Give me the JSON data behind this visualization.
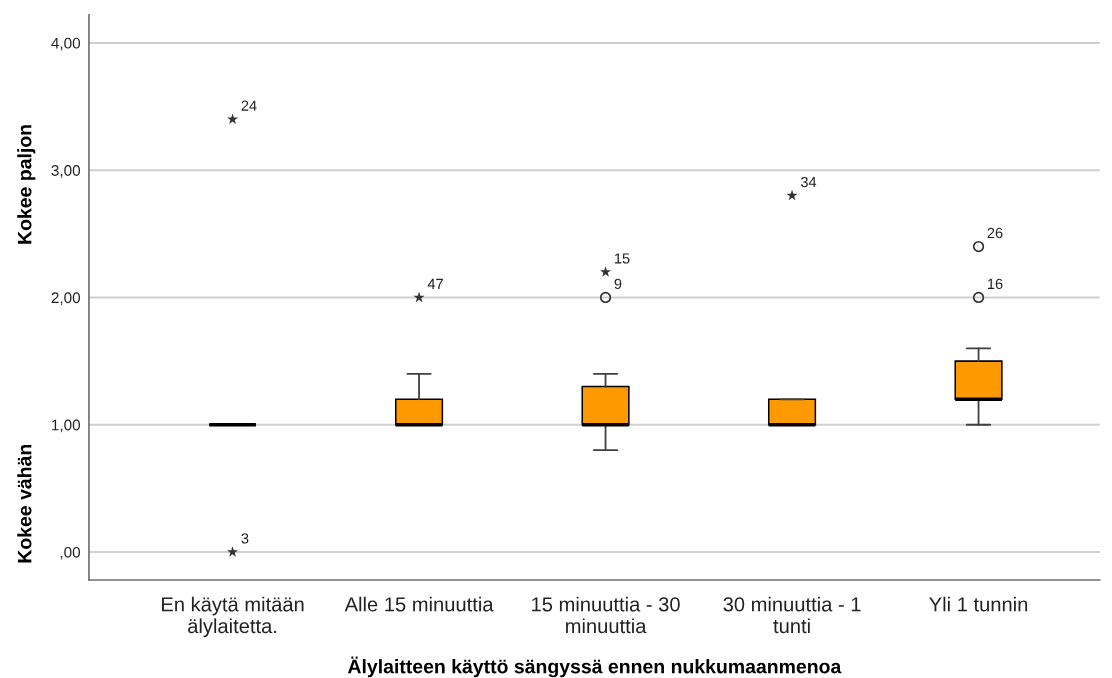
{
  "chart_data": {
    "type": "box",
    "xlabel": "Älylaitteen käyttö sängyssä ennen nukkumaanmenoa",
    "categories": [
      "En käytä mitään\nälylaitetta.",
      "Alle 15 minuuttia",
      "15 minuuttia - 30\nminuuttia",
      "30 minuuttia - 1\ntunti",
      "Yli 1 tunnin"
    ],
    "colors": [
      "#000000",
      "#ff9900",
      "#ff9900",
      "#ff9900",
      "#ff9900"
    ],
    "boxes": [
      {
        "low": 1,
        "q1": 1,
        "median": 1,
        "q3": 1,
        "high": 1
      },
      {
        "low": 1,
        "q1": 1,
        "median": 1,
        "q3": 1.2,
        "high": 1.4
      },
      {
        "low": 0.8,
        "q1": 1,
        "median": 1,
        "q3": 1.3,
        "high": 1.4
      },
      {
        "low": 1,
        "q1": 1,
        "median": 1,
        "q3": 1.2,
        "high": 1.2
      },
      {
        "low": 1,
        "q1": 1.2,
        "median": 1.2,
        "q3": 1.5,
        "high": 1.6
      }
    ],
    "series": [
      {
        "type": "scatter",
        "marker": "star",
        "color": "#333333",
        "x": [
          "En käytä mitään\nälylaitetta.",
          "En käytä mitään\nälylaitetta.",
          "Alle 15 minuuttia",
          "15 minuuttia - 30\nminuuttia",
          "30 minuuttia - 1\ntunti"
        ],
        "values": [
          3.4,
          0,
          2,
          2.2,
          2.8
        ]
      },
      {
        "type": "scatter",
        "marker": "circle",
        "color": "#333333",
        "x": [
          "15 minuuttia - 30\nminuuttia",
          "Yli 1 tunnin",
          "Yli 1 tunnin"
        ],
        "values": [
          2,
          2.4,
          2
        ]
      }
    ],
    "ylim": [
      -0.22,
      4.22
    ],
    "yticks": [
      {
        "value": 0,
        "label": ",00"
      },
      {
        "value": 1,
        "label": "1,00"
      },
      {
        "value": 2,
        "label": "2,00"
      },
      {
        "value": 3,
        "label": "3,00"
      },
      {
        "value": 4,
        "label": "4,00"
      }
    ],
    "grid": "y",
    "annotations": [
      "Kokee paljon",
      "Kokee vähän",
      {
        "text": "24",
        "x": "En käytä mitään\nälylaitetta.",
        "y": 3.4
      },
      {
        "text": "3",
        "x": "En käytä mitään\nälylaitetta.",
        "y": 0
      },
      {
        "text": "47",
        "x": "Alle 15 minuuttia",
        "y": 2
      },
      {
        "text": "15",
        "x": "15 minuuttia - 30\nminuuttia",
        "y": 2.2
      },
      {
        "text": "9",
        "x": "15 minuuttia - 30\nminuuttia",
        "y": 2
      },
      {
        "text": "34",
        "x": "30 minuuttia - 1\ntunti",
        "y": 2.8
      },
      {
        "text": "26",
        "x": "Yli 1 tunnin",
        "y": 2.4
      },
      {
        "text": "16",
        "x": "Yli 1 tunnin",
        "y": 2
      }
    ]
  }
}
